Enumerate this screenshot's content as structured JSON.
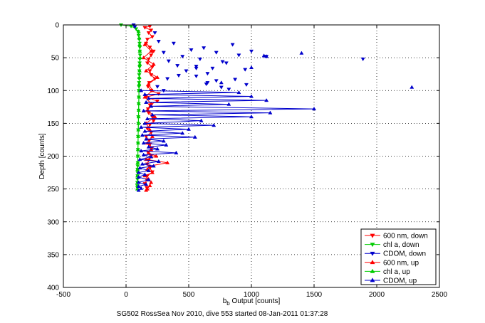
{
  "chart_data": {
    "type": "scatter",
    "title": "",
    "footer": "SG502 RossSea Nov 2010, dive 553 started 08-Jan-2011 01:37:28",
    "xlabel": {
      "pre": "b",
      "sub": "b",
      "post": " Output [counts]"
    },
    "ylabel": "Depth [counts]",
    "xlim": [
      -500,
      2500
    ],
    "ylim": [
      0,
      400
    ],
    "y_reversed": true,
    "grid": true,
    "x_ticks": [
      "-500",
      "0",
      "500",
      "1000",
      "1500",
      "2000",
      "2500"
    ],
    "y_ticks": [
      "0",
      "50",
      "100",
      "150",
      "200",
      "250",
      "300",
      "350",
      "400"
    ],
    "legend_position": "bottom-right",
    "series": [
      {
        "name": "600 nm, down",
        "color": "#ff0000",
        "marker": "tri-down",
        "connected": true,
        "x": [
          190,
          150,
          200,
          180,
          210,
          170,
          160,
          190,
          220,
          200,
          180,
          170,
          210,
          190,
          200,
          230,
          185,
          175,
          200,
          260,
          160,
          250,
          190,
          175,
          180,
          210,
          220,
          190,
          170,
          200,
          160,
          185,
          190,
          205,
          175,
          200,
          180,
          170,
          190,
          210,
          170,
          165,
          150,
          165
        ],
        "y": [
          2,
          4,
          8,
          12,
          18,
          22,
          28,
          34,
          40,
          46,
          52,
          58,
          64,
          70,
          76,
          82,
          88,
          94,
          100,
          105,
          110,
          116,
          122,
          128,
          134,
          140,
          146,
          152,
          158,
          164,
          170,
          176,
          182,
          188,
          194,
          200,
          206,
          212,
          218,
          224,
          230,
          236,
          242,
          248
        ]
      },
      {
        "name": "chl a, down",
        "color": "#00cc00",
        "marker": "tri-down",
        "connected": true,
        "x": [
          -40,
          40,
          80,
          95,
          100,
          105,
          108,
          110,
          110,
          112,
          110,
          108,
          108,
          106,
          105,
          105,
          104,
          103,
          102,
          102,
          100,
          100,
          98,
          98,
          97,
          96,
          95,
          95,
          94,
          94,
          93,
          92,
          92,
          92,
          91,
          90,
          90,
          90
        ],
        "y": [
          0,
          2,
          6,
          10,
          16,
          22,
          28,
          34,
          40,
          46,
          52,
          58,
          64,
          70,
          76,
          82,
          88,
          94,
          100,
          110,
          120,
          130,
          140,
          150,
          160,
          170,
          180,
          190,
          200,
          210,
          215,
          220,
          225,
          230,
          235,
          240,
          245,
          248
        ]
      },
      {
        "name": "CDOM, down",
        "color": "#0000cc",
        "marker": "tri-down",
        "connected": false,
        "x": [
          60,
          70,
          230,
          260,
          300,
          340,
          380,
          410,
          450,
          480,
          520,
          560,
          590,
          620,
          650,
          690,
          720,
          760,
          800,
          850,
          900,
          950,
          1000,
          1120,
          1890,
          330,
          420,
          560,
          640,
          720,
          820,
          300,
          250,
          560,
          650,
          770,
          870,
          960
        ],
        "y": [
          0,
          3,
          12,
          25,
          42,
          55,
          28,
          62,
          48,
          70,
          38,
          78,
          52,
          35,
          88,
          66,
          42,
          95,
          58,
          30,
          46,
          68,
          40,
          48,
          52,
          82,
          77,
          63,
          90,
          85,
          98,
          100,
          94,
          66,
          74,
          56,
          83,
          91
        ]
      },
      {
        "name": "600 nm, up",
        "color": "#ff0000",
        "marker": "tri-up",
        "connected": true,
        "x": [
          150,
          200,
          140,
          220,
          160,
          250,
          180,
          210,
          150,
          200,
          170,
          230,
          160,
          190,
          210,
          170,
          200,
          180,
          240,
          160,
          330,
          190,
          170,
          210,
          150,
          180,
          200,
          190,
          170,
          160
        ],
        "y": [
          30,
          40,
          50,
          60,
          70,
          80,
          90,
          100,
          110,
          120,
          130,
          140,
          150,
          160,
          170,
          180,
          190,
          195,
          200,
          205,
          210,
          215,
          220,
          225,
          230,
          235,
          240,
          245,
          250,
          252
        ]
      },
      {
        "name": "chl a, up",
        "color": "#00cc00",
        "marker": "tri-up",
        "connected": true,
        "x": [
          100,
          105,
          108,
          110,
          112,
          110,
          108,
          106,
          105,
          104,
          103,
          102,
          101,
          100,
          99,
          98,
          97,
          96,
          95,
          94,
          93,
          92,
          91,
          90,
          90
        ],
        "y": [
          10,
          20,
          30,
          40,
          50,
          60,
          70,
          80,
          90,
          100,
          110,
          120,
          130,
          140,
          150,
          160,
          170,
          180,
          190,
          200,
          210,
          220,
          230,
          240,
          250
        ]
      },
      {
        "name": "CDOM, up",
        "color": "#0000cc",
        "marker": "tri-up",
        "connected": true,
        "x": [
          120,
          900,
          150,
          1000,
          180,
          1120,
          160,
          820,
          200,
          1500,
          140,
          1150,
          210,
          1000,
          170,
          600,
          150,
          700,
          120,
          500,
          150,
          450,
          130,
          550,
          160,
          300,
          140,
          320,
          180,
          250,
          120,
          400,
          140,
          200,
          110,
          260,
          130,
          220,
          110,
          180,
          100,
          150,
          100,
          180,
          100,
          160,
          100,
          120,
          100
        ],
        "y": [
          100,
          103,
          106,
          109,
          112,
          115,
          118,
          121,
          124,
          128,
          131,
          134,
          137,
          140,
          143,
          146,
          150,
          153,
          156,
          159,
          162,
          165,
          168,
          171,
          174,
          177,
          180,
          183,
          186,
          189,
          192,
          195,
          198,
          201,
          205,
          208,
          212,
          215,
          218,
          222,
          225,
          228,
          232,
          236,
          240,
          243,
          246,
          249,
          252
        ]
      },
      {
        "name": "",
        "color": "#0000cc",
        "marker": "tri-up",
        "connected": false,
        "x": [
          1400,
          1100,
          1000,
          2280,
          1120,
          760
        ],
        "y": [
          43,
          47,
          65,
          95,
          48,
          88
        ]
      }
    ]
  }
}
